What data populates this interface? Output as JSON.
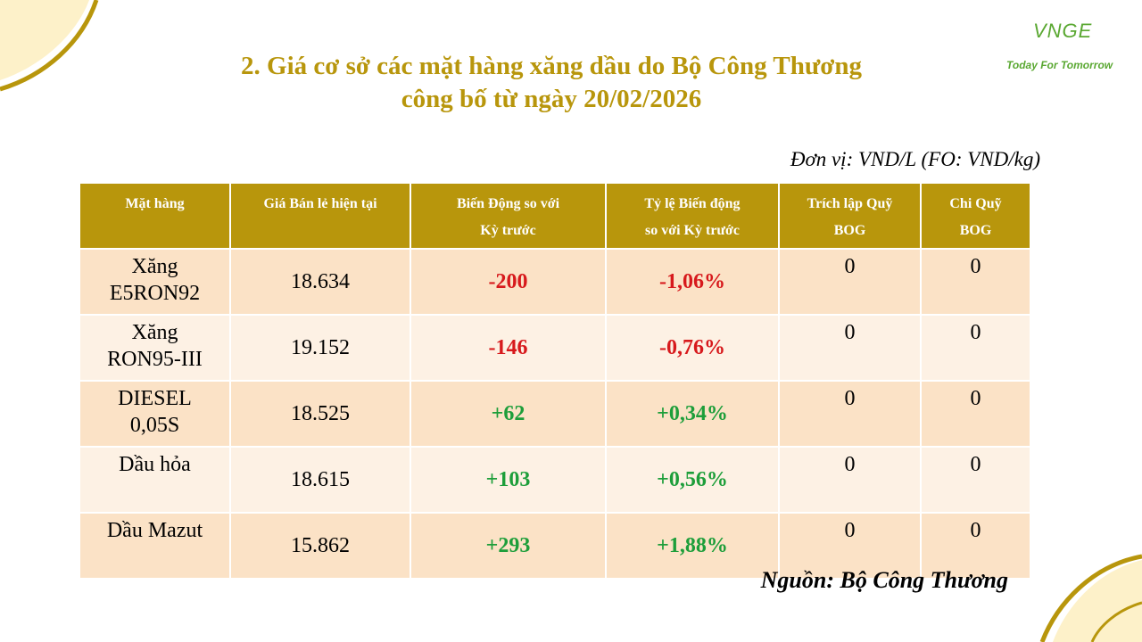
{
  "colors": {
    "accent": "#b8960c",
    "row_odd": "#fbe2c6",
    "row_even": "#fdf1e4",
    "negative": "#d7191c",
    "positive": "#1d9e3a",
    "logo": "#5aa832"
  },
  "logo": {
    "mark": "VNGE",
    "tagline": "Today For Tomorrow"
  },
  "title": {
    "line1": "2. Giá cơ sở các mặt hàng xăng dầu do Bộ Công Thương",
    "line2": "công bố từ ngày 20/02/2026"
  },
  "unit": "Đơn vị: VND/L (FO: VND/kg)",
  "table": {
    "headers": [
      {
        "l1": "Mặt hàng",
        "l2": ""
      },
      {
        "l1": "Giá Bán lẻ hiện tại",
        "l2": ""
      },
      {
        "l1": "Biến Động so với",
        "l2": "Kỳ trước"
      },
      {
        "l1": "Tỷ lệ Biến động",
        "l2": "so với Kỳ trước"
      },
      {
        "l1": "Trích lập Quỹ",
        "l2": "BOG"
      },
      {
        "l1": "Chi Quỹ",
        "l2": "BOG"
      }
    ],
    "rows": [
      {
        "l1": "Xăng",
        "l2": "E5RON92",
        "price": "18.634",
        "change": "-200",
        "rate": "-1,06%",
        "bog_in": "0",
        "bog_out": "0",
        "trend": "neg"
      },
      {
        "l1": "Xăng",
        "l2": "RON95-III",
        "price": "19.152",
        "change": "-146",
        "rate": "-0,76%",
        "bog_in": "0",
        "bog_out": "0",
        "trend": "neg"
      },
      {
        "l1": "DIESEL",
        "l2": "0,05S",
        "price": "18.525",
        "change": "+62",
        "rate": "+0,34%",
        "bog_in": "0",
        "bog_out": "0",
        "trend": "pos"
      },
      {
        "l1": "Dầu hỏa",
        "l2": "",
        "price": "18.615",
        "change": "+103",
        "rate": "+0,56%",
        "bog_in": "0",
        "bog_out": "0",
        "trend": "pos"
      },
      {
        "l1": "Dầu Mazut",
        "l2": "",
        "price": "15.862",
        "change": "+293",
        "rate": "+1,88%",
        "bog_in": "0",
        "bog_out": "0",
        "trend": "pos"
      }
    ]
  },
  "source": "Nguồn: Bộ Công Thương"
}
